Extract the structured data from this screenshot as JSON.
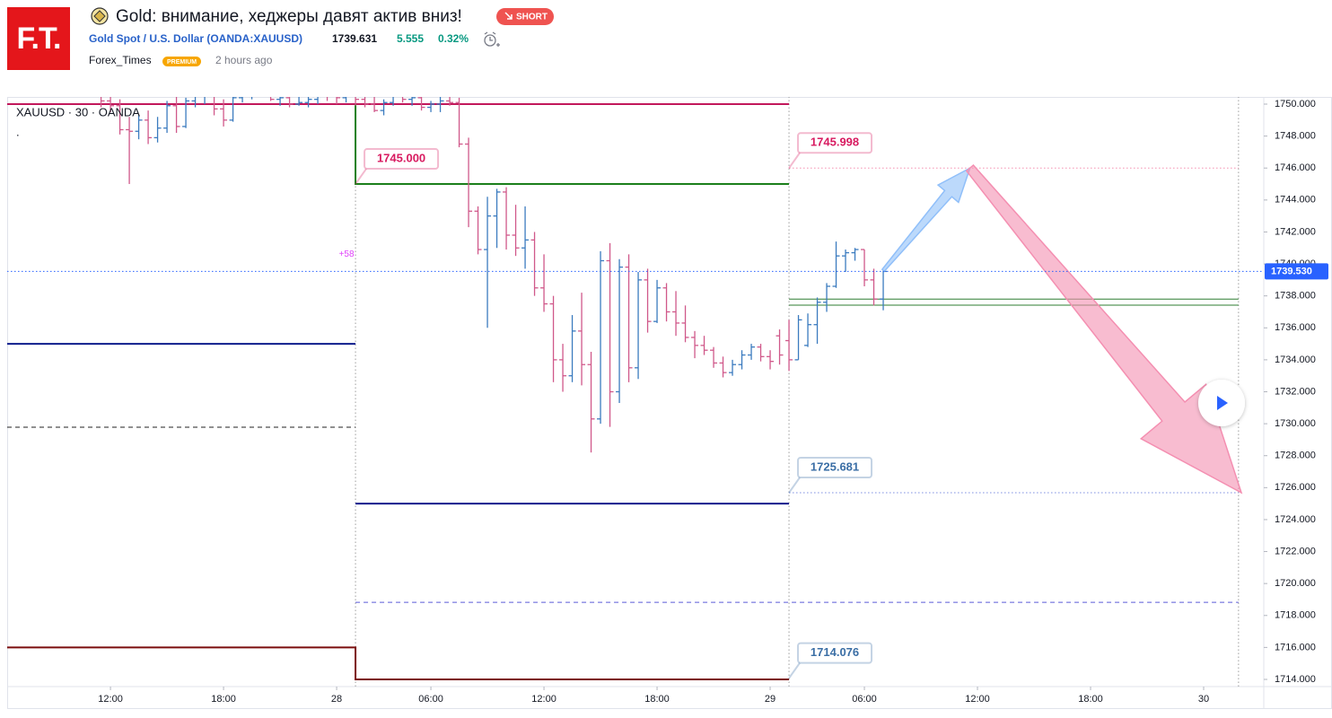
{
  "header": {
    "logo": "F.T.",
    "title": "Gold: внимание, хеджеры давят актив вниз!",
    "badge": "SHORT",
    "symbol": "Gold Spot / U.S. Dollar (OANDA:XAUUSD)",
    "price": "1739.631",
    "change": "5.555",
    "change_pct": "0.32%",
    "author": "Forex_Times",
    "author_badge": "PREMIUM",
    "time": "2 hours ago"
  },
  "chart_data": {
    "type": "ohlc",
    "legend": "XAUUSD · 30 · OANDA",
    "legend_note": ".",
    "up_color": "#3b7bbf",
    "down_color": "#d0588a",
    "xlim": [
      6.52,
      73.19
    ],
    "ylim": [
      1713.55,
      1750.45
    ],
    "xticks": [
      {
        "value": 12,
        "label": "12:00"
      },
      {
        "value": 18,
        "label": "18:00"
      },
      {
        "value": 24,
        "label": "28"
      },
      {
        "value": 29,
        "label": "06:00"
      },
      {
        "value": 35,
        "label": "12:00"
      },
      {
        "value": 41,
        "label": "18:00"
      },
      {
        "value": 47,
        "label": "29"
      },
      {
        "value": 52,
        "label": "06:00"
      },
      {
        "value": 58,
        "label": "12:00"
      },
      {
        "value": 64,
        "label": "18:00"
      },
      {
        "value": 70,
        "label": "30"
      }
    ],
    "yticks": [
      {
        "value": 1714,
        "label": "1714.000"
      },
      {
        "value": 1716,
        "label": "1716.000"
      },
      {
        "value": 1718,
        "label": "1718.000"
      },
      {
        "value": 1720,
        "label": "1720.000"
      },
      {
        "value": 1722,
        "label": "1722.000"
      },
      {
        "value": 1724,
        "label": "1724.000"
      },
      {
        "value": 1726,
        "label": "1726.000"
      },
      {
        "value": 1728,
        "label": "1728.000"
      },
      {
        "value": 1730,
        "label": "1730.000"
      },
      {
        "value": 1732,
        "label": "1732.000"
      },
      {
        "value": 1734,
        "label": "1734.000"
      },
      {
        "value": 1736,
        "label": "1736.000"
      },
      {
        "value": 1738,
        "label": "1738.000"
      },
      {
        "value": 1740,
        "label": "1740.000"
      },
      {
        "value": 1742,
        "label": "1742.000"
      },
      {
        "value": 1744,
        "label": "1744.000"
      },
      {
        "value": 1746,
        "label": "1746.000"
      },
      {
        "value": 1748,
        "label": "1748.000"
      },
      {
        "value": 1750,
        "label": "1750.000"
      }
    ],
    "x": [
      11.5,
      12,
      12.5,
      13,
      13.5,
      14,
      14.5,
      15,
      15.5,
      16,
      16.5,
      17,
      17.5,
      18,
      18.5,
      19,
      19.5,
      20,
      20.5,
      21,
      21.5,
      22,
      22.5,
      23,
      23.5,
      24,
      24.5,
      25,
      25.5,
      26,
      26.5,
      27,
      27.5,
      28,
      28.5,
      29,
      29.5,
      30,
      30.5,
      31,
      31.5,
      32,
      32.5,
      33,
      33.5,
      34,
      34.5,
      35,
      35.5,
      36,
      36.5,
      37,
      37.5,
      38,
      38.5,
      39,
      39.5,
      40,
      40.5,
      41,
      41.5,
      42,
      42.5,
      43,
      43.5,
      44,
      44.5,
      45,
      45.5,
      46,
      46.5,
      47,
      47.5,
      48,
      48.5,
      49,
      49.5,
      50,
      50.5,
      51,
      51.5,
      52,
      52.5,
      53
    ],
    "ohlc": [
      [
        1750.5,
        1751,
        1749.8,
        1750.2
      ],
      [
        1750.2,
        1750.8,
        1749.5,
        1749.9
      ],
      [
        1749.9,
        1750.3,
        1748.1,
        1748.4
      ],
      [
        1748.4,
        1749.2,
        1745.0,
        1748.3
      ],
      [
        1748.3,
        1749.3,
        1747.8,
        1749.0
      ],
      [
        1749.0,
        1749.6,
        1747.5,
        1747.9
      ],
      [
        1747.9,
        1749.2,
        1747.6,
        1748.5
      ],
      [
        1748.5,
        1750.2,
        1748.2,
        1749.9
      ],
      [
        1749.9,
        1750.6,
        1748.2,
        1748.6
      ],
      [
        1748.6,
        1750.4,
        1748.5,
        1750.2
      ],
      [
        1750.2,
        1750.9,
        1749.8,
        1750.5
      ],
      [
        1750.5,
        1751.0,
        1750.0,
        1750.6
      ],
      [
        1750.6,
        1750.8,
        1749.3,
        1749.7
      ],
      [
        1749.7,
        1750.3,
        1748.6,
        1749.0
      ],
      [
        1749.0,
        1750.6,
        1748.9,
        1750.4
      ],
      [
        1750.4,
        1751.0,
        1750.1,
        1750.7
      ],
      [
        1750.7,
        1751.2,
        1750.3,
        1750.9
      ],
      [
        1750.9,
        1751.3,
        1750.5,
        1750.6
      ],
      [
        1750.6,
        1751.0,
        1750.2,
        1750.3
      ],
      [
        1750.3,
        1750.8,
        1749.9,
        1750.4
      ],
      [
        1750.4,
        1750.9,
        1749.8,
        1750.0
      ],
      [
        1750.0,
        1750.7,
        1749.9,
        1750.1
      ],
      [
        1750.1,
        1750.6,
        1749.8,
        1750.3
      ],
      [
        1750.3,
        1750.9,
        1750.0,
        1750.6
      ],
      [
        1750.6,
        1751.0,
        1750.2,
        1750.5
      ],
      [
        1750.5,
        1751.0,
        1750.0,
        1750.4
      ],
      [
        1750.4,
        1750.9,
        1750.1,
        1750.6
      ],
      [
        1750.6,
        1751.1,
        1749.9,
        1750.3
      ],
      [
        1750.3,
        1750.8,
        1749.8,
        1750.0
      ],
      [
        1750.0,
        1750.5,
        1749.5,
        1749.6
      ],
      [
        1749.6,
        1750.3,
        1749.3,
        1750.1
      ],
      [
        1750.1,
        1750.8,
        1749.9,
        1750.5
      ],
      [
        1750.5,
        1751.0,
        1750.1,
        1750.3
      ],
      [
        1750.3,
        1750.9,
        1749.9,
        1750.4
      ],
      [
        1750.4,
        1750.8,
        1749.6,
        1749.8
      ],
      [
        1749.8,
        1750.2,
        1749.5,
        1750.0
      ],
      [
        1750.0,
        1750.5,
        1749.5,
        1750.2
      ],
      [
        1750.2,
        1750.6,
        1749.9,
        1750.1
      ],
      [
        1750.1,
        1750.4,
        1747.3,
        1747.5
      ],
      [
        1747.5,
        1747.9,
        1742.3,
        1743.3
      ],
      [
        1743.3,
        1743.6,
        1740.6,
        1740.9
      ],
      [
        1740.9,
        1744.2,
        1736.0,
        1743.0
      ],
      [
        1743.0,
        1744.7,
        1741.0,
        1744.5
      ],
      [
        1744.5,
        1744.8,
        1740.9,
        1741.8
      ],
      [
        1741.8,
        1743.7,
        1740.5,
        1741.0
      ],
      [
        1741.0,
        1743.6,
        1739.7,
        1741.5
      ],
      [
        1741.5,
        1742.0,
        1738.0,
        1738.5
      ],
      [
        1738.5,
        1740.6,
        1737.0,
        1737.5
      ],
      [
        1737.5,
        1738.0,
        1732.6,
        1734.0
      ],
      [
        1734.0,
        1735.0,
        1732.0,
        1733.0
      ],
      [
        1733.0,
        1736.8,
        1732.6,
        1735.8
      ],
      [
        1735.8,
        1738.2,
        1732.4,
        1733.7
      ],
      [
        1733.7,
        1734.5,
        1728.2,
        1730.3
      ],
      [
        1730.3,
        1740.8,
        1730.0,
        1740.2
      ],
      [
        1740.2,
        1741.3,
        1729.8,
        1732.0
      ],
      [
        1732.0,
        1740.3,
        1731.3,
        1739.8
      ],
      [
        1739.8,
        1740.6,
        1732.6,
        1733.5
      ],
      [
        1733.5,
        1739.5,
        1732.8,
        1739.0
      ],
      [
        1739.0,
        1739.7,
        1735.7,
        1736.4
      ],
      [
        1736.4,
        1739.0,
        1736.3,
        1738.5
      ],
      [
        1738.5,
        1738.8,
        1736.4,
        1737.0
      ],
      [
        1737.0,
        1738.3,
        1735.5,
        1736.3
      ],
      [
        1736.3,
        1737.4,
        1735.1,
        1735.4
      ],
      [
        1735.4,
        1735.8,
        1734.1,
        1734.9
      ],
      [
        1734.9,
        1735.5,
        1734.3,
        1734.6
      ],
      [
        1734.6,
        1734.8,
        1733.5,
        1733.8
      ],
      [
        1733.8,
        1734.2,
        1732.9,
        1733.2
      ],
      [
        1733.2,
        1734.0,
        1733.0,
        1733.7
      ],
      [
        1733.7,
        1734.6,
        1733.4,
        1734.3
      ],
      [
        1734.3,
        1735.0,
        1734.0,
        1734.8
      ],
      [
        1734.8,
        1735.0,
        1733.9,
        1734.2
      ],
      [
        1734.2,
        1734.6,
        1733.4,
        1733.9
      ],
      [
        1735.5,
        1735.9,
        1733.7,
        1734.3
      ],
      [
        1735.2,
        1736.5,
        1733.3,
        1734.0
      ],
      [
        1734.0,
        1736.8,
        1734.0,
        1736.5
      ],
      [
        1734.9,
        1736.9,
        1734.8,
        1736.2
      ],
      [
        1736.2,
        1737.9,
        1735.0,
        1737.6
      ],
      [
        1737.6,
        1738.8,
        1737.0,
        1738.6
      ],
      [
        1738.6,
        1741.4,
        1738.5,
        1740.5
      ],
      [
        1740.5,
        1740.9,
        1739.5,
        1740.7
      ],
      [
        1740.7,
        1741.0,
        1740.2,
        1740.9
      ],
      [
        1740.9,
        1740.9,
        1738.6,
        1739.0
      ],
      [
        1739.0,
        1739.7,
        1737.4,
        1737.8
      ],
      [
        1737.8,
        1739.6,
        1737.1,
        1739.53
      ]
    ],
    "last_price": {
      "value": 1739.53,
      "label": "1739.530"
    },
    "last_price_color": "#2962ff",
    "lines": [
      {
        "points": [
          [
            25,
            1713.55
          ],
          [
            25,
            1750.45
          ]
        ],
        "color": "#9e9e9e",
        "width": 1,
        "dash": "dotted"
      },
      {
        "points": [
          [
            48,
            1713.55
          ],
          [
            48,
            1750.45
          ]
        ],
        "color": "#9e9e9e",
        "width": 1,
        "dash": "dotted"
      },
      {
        "points": [
          [
            71.85,
            1713.55
          ],
          [
            71.85,
            1750.45
          ]
        ],
        "color": "#9e9e9e",
        "width": 1,
        "dash": "dotted"
      },
      {
        "points": [
          [
            6.52,
            1750
          ],
          [
            48,
            1750
          ]
        ],
        "color": "#c2185b",
        "width": 2,
        "dash": "solid"
      },
      {
        "points": [
          [
            25,
            1750
          ],
          [
            25,
            1745
          ],
          [
            48,
            1745
          ]
        ],
        "color": "#1b7f1b",
        "width": 2,
        "dash": "solid"
      },
      {
        "points": [
          [
            6.52,
            1735
          ],
          [
            25,
            1735
          ]
        ],
        "color": "#0d1b8c",
        "width": 2,
        "dash": "solid"
      },
      {
        "points": [
          [
            25,
            1725
          ],
          [
            48,
            1725
          ]
        ],
        "color": "#0d1b8c",
        "width": 2,
        "dash": "solid"
      },
      {
        "points": [
          [
            6.52,
            1729.78
          ],
          [
            25,
            1729.78
          ]
        ],
        "color": "#222222",
        "width": 1,
        "dash": "dashed"
      },
      {
        "points": [
          [
            25,
            1718.82
          ],
          [
            71.85,
            1718.82
          ]
        ],
        "color": "#5b5bd6",
        "width": 1,
        "dash": "dashed"
      },
      {
        "points": [
          [
            6.52,
            1716
          ],
          [
            25,
            1716
          ],
          [
            25,
            1714
          ],
          [
            48,
            1714
          ]
        ],
        "color": "#7b0d0d",
        "width": 2,
        "dash": "solid"
      },
      {
        "points": [
          [
            48,
            1737.8
          ],
          [
            71.85,
            1737.8
          ]
        ],
        "color": "#2e7d32",
        "width": 1,
        "dash": "solid"
      },
      {
        "points": [
          [
            48,
            1737.42
          ],
          [
            71.85,
            1737.42
          ]
        ],
        "color": "#2e7d32",
        "width": 1,
        "dash": "solid"
      },
      {
        "points": [
          [
            48,
            1745.998
          ],
          [
            71.85,
            1745.998
          ]
        ],
        "color": "#f48fb1",
        "width": 1,
        "dash": "dotted"
      },
      {
        "points": [
          [
            48,
            1725.681
          ],
          [
            71.85,
            1725.681
          ]
        ],
        "color": "#7e8ee0",
        "width": 1,
        "dash": "dotted"
      }
    ],
    "price_labels": [
      {
        "x": 25,
        "value": 1745,
        "label": "1745.000",
        "color": "#d81b60"
      },
      {
        "x": 48,
        "value": 1745.998,
        "label": "1745.998",
        "color": "#d81b60"
      },
      {
        "x": 48,
        "value": 1725.681,
        "label": "1725.681",
        "color": "#3a6ea5"
      },
      {
        "x": 48,
        "value": 1714.076,
        "label": "1714.076",
        "color": "#3a6ea5"
      }
    ],
    "range_label": "+58",
    "arrows": [
      {
        "from": [
          53,
          1739.6
        ],
        "to": [
          57.6,
          1745.998
        ],
        "color": "#90bff9"
      },
      {
        "from": [
          57.6,
          1745.998
        ],
        "to": [
          72.0,
          1725.681
        ],
        "color": "#f48fb1"
      }
    ]
  }
}
